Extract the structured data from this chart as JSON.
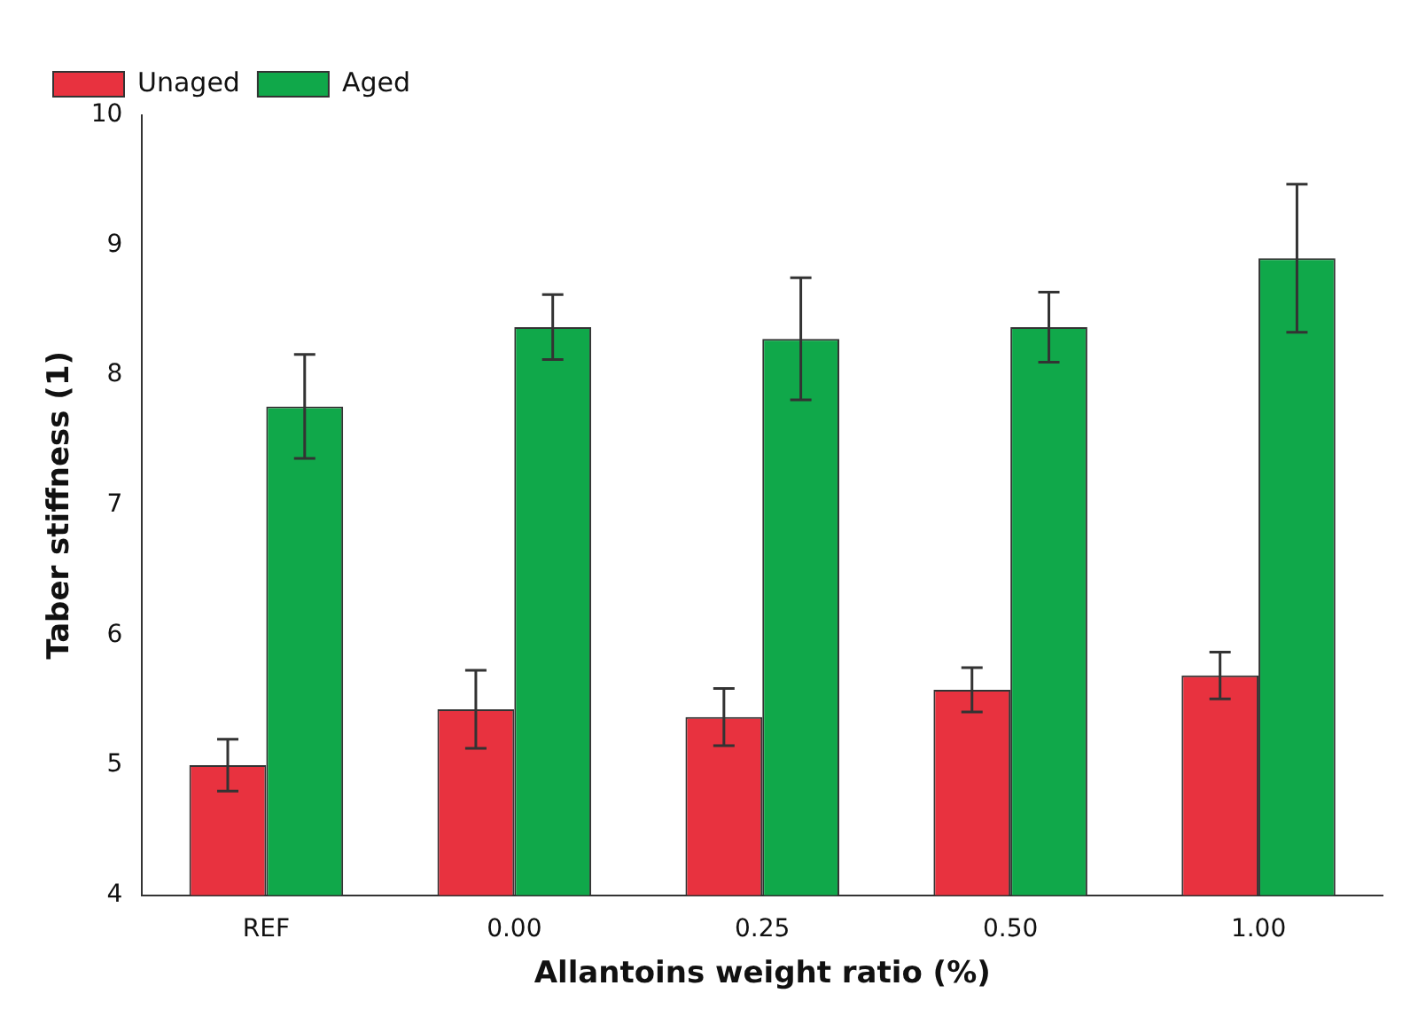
{
  "chart_data": {
    "type": "bar",
    "xlabel": "Allantoins weight ratio (%)",
    "ylabel": "Taber stiffness (1)",
    "categories": [
      "REF",
      "0.00",
      "0.25",
      "0.50",
      "1.00"
    ],
    "series": [
      {
        "name": "Unaged",
        "color": "#e8323f",
        "values": [
          5.0,
          5.43,
          5.37,
          5.58,
          5.69
        ],
        "errors": [
          0.2,
          0.3,
          0.22,
          0.17,
          0.18
        ]
      },
      {
        "name": "Aged",
        "color": "#10a84a",
        "values": [
          7.76,
          8.37,
          8.28,
          8.37,
          8.9
        ],
        "errors": [
          0.4,
          0.25,
          0.47,
          0.27,
          0.57
        ]
      }
    ],
    "ylim": [
      4,
      10
    ],
    "yticks": [
      4,
      5,
      6,
      7,
      8,
      9,
      10
    ],
    "grid": false,
    "legend": "top left"
  }
}
